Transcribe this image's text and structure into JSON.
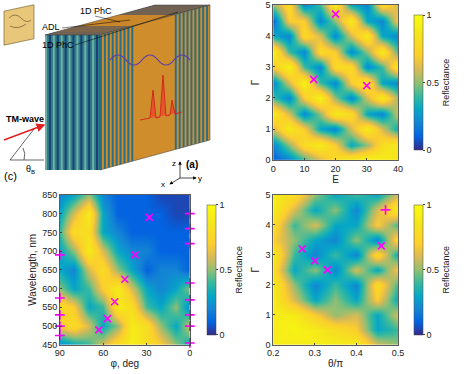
{
  "schematic": {
    "labels": [
      "1D PhC",
      "ADL",
      "1D PhC"
    ],
    "wave": "TM-wave",
    "angle": "θB",
    "panel_label": "(a)",
    "axes": [
      "z",
      "x",
      "y"
    ]
  },
  "chart_data": [
    {
      "type": "heatmap",
      "x_label": "E",
      "y_label": "Γ",
      "xlim": [
        0,
        40
      ],
      "ylim": [
        0,
        5
      ],
      "xticks": [
        0,
        10,
        20,
        30,
        40
      ],
      "yticks": [
        0,
        1,
        2,
        3,
        4,
        5
      ],
      "x": [
        0,
        5,
        10,
        15,
        20,
        25,
        30,
        35,
        40
      ],
      "y": [
        0,
        0.5,
        1,
        1.5,
        2,
        2.5,
        3,
        3.5,
        4,
        4.5,
        5
      ],
      "z": [
        [
          0.1,
          0.2,
          0.4,
          0.6,
          0.8,
          0.9,
          0.95,
          0.9,
          0.85
        ],
        [
          0.2,
          0.5,
          0.8,
          0.9,
          0.7,
          0.3,
          0.5,
          0.8,
          0.9
        ],
        [
          0.6,
          0.9,
          0.7,
          0.3,
          0.2,
          0.6,
          0.9,
          0.6,
          0.3
        ],
        [
          0.9,
          0.6,
          0.2,
          0.5,
          0.9,
          0.8,
          0.3,
          0.2,
          0.6
        ],
        [
          0.4,
          0.2,
          0.7,
          0.95,
          0.5,
          0.2,
          0.6,
          0.9,
          0.5
        ],
        [
          0.2,
          0.6,
          0.95,
          0.4,
          0.2,
          0.7,
          0.9,
          0.3,
          0.2
        ],
        [
          0.7,
          0.95,
          0.4,
          0.2,
          0.8,
          0.8,
          0.2,
          0.4,
          0.9
        ],
        [
          0.95,
          0.4,
          0.2,
          0.8,
          0.7,
          0.2,
          0.5,
          0.9,
          0.4
        ],
        [
          0.3,
          0.2,
          0.8,
          0.6,
          0.2,
          0.6,
          0.9,
          0.3,
          0.2
        ],
        [
          0.1,
          0.7,
          0.7,
          0.2,
          0.5,
          0.9,
          0.3,
          0.2,
          0.7
        ],
        [
          0.5,
          0.8,
          0.2,
          0.4,
          0.9,
          0.3,
          0.2,
          0.8,
          0.6
        ]
      ],
      "colorbar": {
        "title": "Reflectance",
        "range": [
          0,
          1
        ],
        "ticks": [
          0,
          0.5,
          1
        ]
      },
      "series": [
        {
          "type": "scatter",
          "marker": "x",
          "color": "#ff00ff",
          "x": [
            13,
            30,
            20
          ],
          "y": [
            2.6,
            2.4,
            4.7
          ]
        }
      ]
    },
    {
      "type": "heatmap",
      "panel_label": "(c)",
      "x_label": "φ, deg",
      "y_label": "Wavelength, nm",
      "xlim": [
        90,
        0
      ],
      "ylim": [
        450,
        850
      ],
      "xticks": [
        90,
        60,
        30,
        0
      ],
      "yticks": [
        450,
        500,
        550,
        600,
        650,
        700,
        750,
        800,
        850
      ],
      "x": [
        0,
        10,
        20,
        30,
        40,
        50,
        60,
        70,
        80,
        90
      ],
      "y": [
        450,
        500,
        550,
        600,
        650,
        700,
        750,
        800,
        850
      ],
      "z": [
        [
          0.3,
          0.5,
          0.7,
          0.8,
          0.9,
          0.8,
          0.6,
          0.4,
          0.3,
          0.2
        ],
        [
          0.6,
          0.3,
          0.5,
          0.8,
          0.9,
          0.5,
          0.3,
          0.6,
          0.8,
          0.7
        ],
        [
          0.2,
          0.5,
          0.3,
          0.4,
          0.8,
          0.9,
          0.4,
          0.3,
          0.7,
          0.8
        ],
        [
          0.5,
          0.3,
          0.2,
          0.3,
          0.6,
          0.9,
          0.7,
          0.4,
          0.3,
          0.5
        ],
        [
          0.1,
          0.2,
          0.2,
          0.1,
          0.3,
          0.5,
          0.8,
          0.6,
          0.2,
          0.3
        ],
        [
          0.1,
          0.1,
          0.1,
          0.2,
          0.2,
          0.3,
          0.6,
          0.9,
          0.5,
          0.3
        ],
        [
          0.1,
          0.1,
          0.1,
          0.1,
          0.1,
          0.2,
          0.3,
          0.8,
          0.8,
          0.4
        ],
        [
          0.05,
          0.05,
          0.1,
          0.1,
          0.1,
          0.1,
          0.3,
          0.9,
          0.6,
          0.3
        ],
        [
          0.05,
          0.05,
          0.05,
          0.1,
          0.1,
          0.1,
          0.2,
          0.5,
          0.3,
          0.2
        ]
      ],
      "colorbar": {
        "title": "Reflectance",
        "range": [
          0,
          1
        ],
        "ticks": [
          0,
          0.5,
          1
        ]
      },
      "series": [
        {
          "type": "scatter",
          "marker": "plus",
          "color": "#ff00ff",
          "x": [
            90,
            90,
            90,
            90,
            90,
            0,
            0,
            0,
            0,
            0,
            0,
            0,
            0
          ],
          "y": [
            475,
            500,
            530,
            575,
            690,
            455,
            500,
            530,
            570,
            615,
            720,
            760,
            800
          ]
        },
        {
          "type": "scatter",
          "marker": "x",
          "color": "#ff00ff",
          "x": [
            63,
            57,
            52,
            45,
            38,
            28
          ],
          "y": [
            490,
            520,
            565,
            625,
            690,
            790
          ]
        }
      ]
    },
    {
      "type": "heatmap",
      "x_label": "θ/π",
      "y_label": "Γ",
      "xlim": [
        0.2,
        0.5
      ],
      "ylim": [
        0,
        5
      ],
      "xticks": [
        0.2,
        0.3,
        0.4,
        0.5
      ],
      "yticks": [
        0,
        1,
        2,
        3,
        4,
        5
      ],
      "x": [
        0.2,
        0.25,
        0.3,
        0.35,
        0.4,
        0.45,
        0.5
      ],
      "y": [
        0,
        0.5,
        1,
        1.5,
        2,
        2.5,
        3,
        3.5,
        4,
        4.5,
        5
      ],
      "z": [
        [
          0.9,
          0.9,
          0.9,
          0.9,
          0.9,
          0.6,
          0.5
        ],
        [
          0.9,
          0.95,
          0.9,
          0.8,
          0.7,
          0.3,
          0.4
        ],
        [
          0.9,
          0.9,
          0.7,
          0.5,
          0.6,
          0.3,
          0.6
        ],
        [
          0.9,
          0.6,
          0.3,
          0.5,
          0.3,
          0.7,
          0.3
        ],
        [
          0.9,
          0.5,
          0.2,
          0.4,
          0.2,
          0.8,
          0.4
        ],
        [
          0.8,
          0.3,
          0.5,
          0.2,
          0.6,
          0.3,
          0.7
        ],
        [
          0.9,
          0.4,
          0.2,
          0.4,
          0.2,
          0.8,
          0.3
        ],
        [
          0.7,
          0.5,
          0.3,
          0.2,
          0.5,
          0.2,
          0.8
        ],
        [
          0.8,
          0.4,
          0.6,
          0.3,
          0.3,
          0.7,
          0.4
        ],
        [
          0.9,
          0.6,
          0.3,
          0.5,
          0.2,
          0.6,
          0.9
        ],
        [
          0.9,
          0.8,
          0.5,
          0.3,
          0.4,
          0.3,
          0.6
        ]
      ],
      "colorbar": {
        "title": "Reflectance",
        "range": [
          0,
          1
        ],
        "ticks": [
          0,
          0.5,
          1
        ]
      },
      "series": [
        {
          "type": "scatter",
          "marker": "x",
          "color": "#ff00ff",
          "x": [
            0.27,
            0.3,
            0.33,
            0.46
          ],
          "y": [
            3.2,
            2.8,
            2.5,
            3.3
          ]
        },
        {
          "type": "scatter",
          "marker": "plus",
          "color": "#ff00ff",
          "x": [
            0.47
          ],
          "y": [
            4.5
          ]
        }
      ]
    }
  ]
}
